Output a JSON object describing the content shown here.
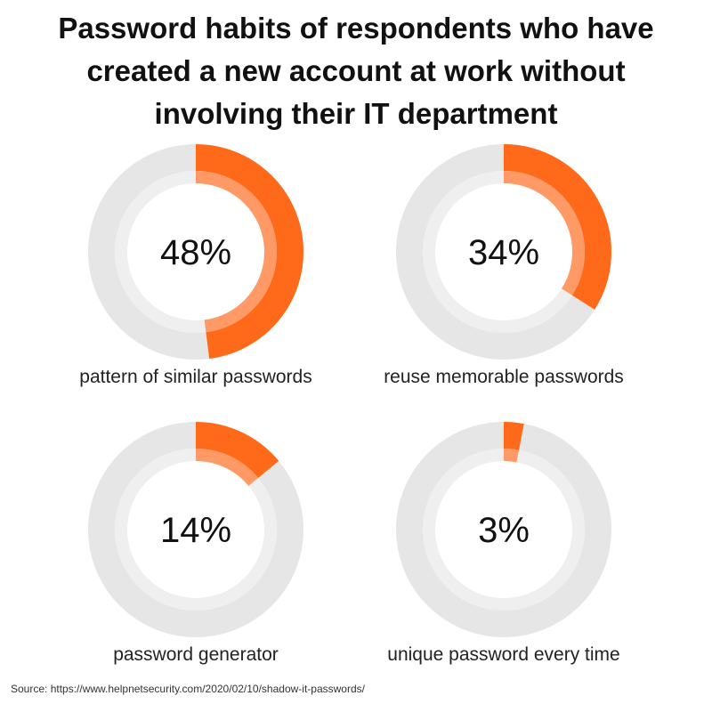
{
  "title_lines": [
    "Password habits of respondents who have",
    "created a new account at work without",
    "involving their IT department"
  ],
  "chart_data": {
    "type": "pie",
    "title": "Password habits of respondents who have created a new account at work without involving their IT department",
    "unit": "%",
    "items": [
      {
        "value": 48,
        "label": "48%",
        "caption": "pattern of similar passwords"
      },
      {
        "value": 34,
        "label": "34%",
        "caption": "reuse memorable passwords"
      },
      {
        "value": 14,
        "label": "14%",
        "caption": "password generator"
      },
      {
        "value": 3,
        "label": "3%",
        "caption": "unique password every time"
      }
    ]
  },
  "colors": {
    "outer_fill": "#ff6a1a",
    "inner_fill": "#ff9966",
    "outer_track": "#e6e6e6",
    "inner_track": "#efefef"
  },
  "source": "Source: https://www.helpnetsecurity.com/2020/02/10/shadow-it-passwords/"
}
